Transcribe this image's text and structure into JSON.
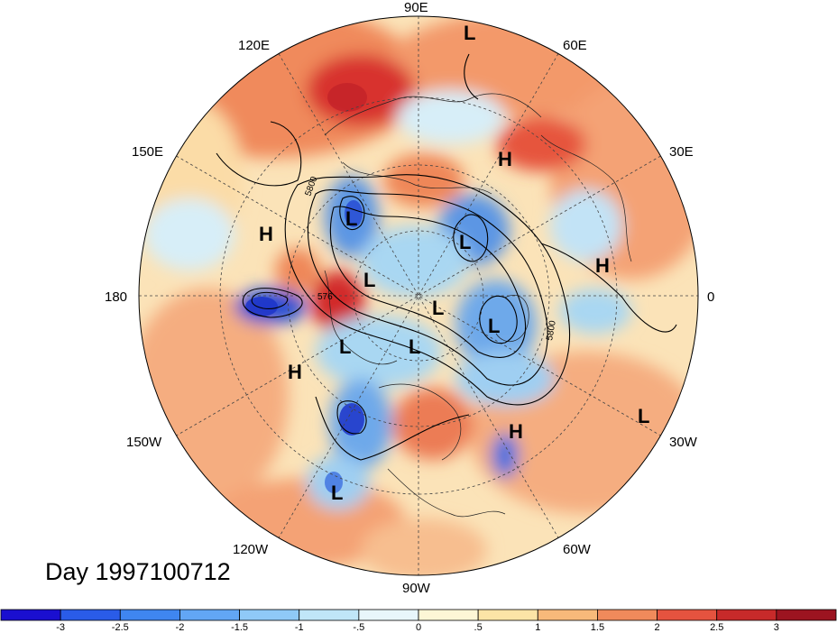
{
  "title": "Day 1997100712",
  "longitude_labels": [
    "90E",
    "60E",
    "30E",
    "0",
    "30W",
    "60W",
    "90W",
    "120W",
    "150W",
    "180",
    "150E",
    "120E"
  ],
  "contour_labels": [
    "5800",
    "5800",
    "576"
  ],
  "pressure_centers": [
    {
      "type": "L",
      "name": "low"
    },
    {
      "type": "H",
      "name": "high"
    }
  ],
  "colorbar": {
    "ticks": [
      "-3",
      "-2.5",
      "-2",
      "-1.5",
      "-1",
      "-.5",
      "0",
      ".5",
      "1",
      "1.5",
      "2",
      "2.5",
      "3"
    ],
    "colors": [
      "#1a0fd0",
      "#2a5ce8",
      "#3f86f0",
      "#62a6f5",
      "#8fc9f7",
      "#c0e6f8",
      "#e8f6fb",
      "#fdf6d6",
      "#fce4a6",
      "#f8b97a",
      "#f08a5b",
      "#e5533f",
      "#c72a2a",
      "#9c1420"
    ]
  },
  "colors": {
    "strong_warm": "#d8322f",
    "warm": "#f28a5e",
    "mild_warm": "#f9c593",
    "neutral": "#fcefcf",
    "mild_cool": "#a9d7f2",
    "cool": "#4a8fe2",
    "strong_cool": "#1c34c9"
  }
}
